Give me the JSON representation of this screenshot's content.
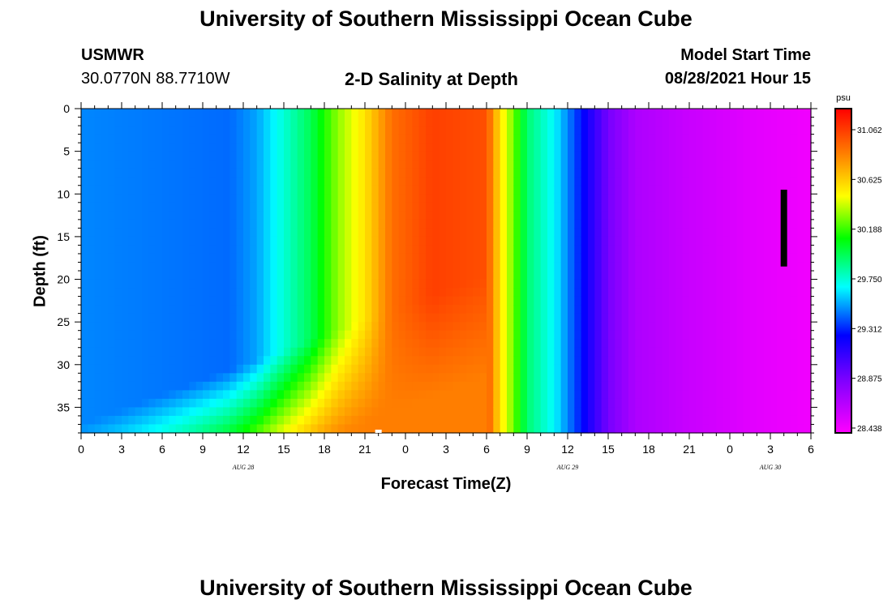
{
  "page": {
    "top_title": "University of Southern Mississippi Ocean Cube",
    "bottom_title": "University of Southern Mississippi Ocean Cube",
    "station_name": "USMWR",
    "station_coords": "30.0770N  88.7710W",
    "plot_title": "2-D Salinity at Depth",
    "model_start_label": "Model Start Time",
    "model_start_value": "08/28/2021 Hour 15"
  },
  "chart_data": {
    "type": "heatmap",
    "title": "2-D Salinity at Depth",
    "xlabel": "Forecast Time(Z)",
    "ylabel": "Depth (ft)",
    "x_ticks": [
      "0",
      "3",
      "6",
      "9",
      "12",
      "15",
      "18",
      "21",
      "0",
      "3",
      "6",
      "9",
      "12",
      "15",
      "18",
      "21",
      "0",
      "3",
      "6"
    ],
    "date_labels": [
      {
        "text": "AUG 28",
        "tick_index": 4
      },
      {
        "text": "AUG 29",
        "tick_index": 12
      },
      {
        "text": "AUG 30",
        "tick_index": 17
      }
    ],
    "y_ticks": [
      0,
      5,
      10,
      15,
      20,
      25,
      30,
      35
    ],
    "ylim": [
      0,
      38
    ],
    "xlim_hours": [
      0,
      54
    ],
    "colorbar": {
      "unit": "psu",
      "ticks": [
        "31.062",
        "30.625",
        "30.188",
        "29.750",
        "29.312",
        "28.875",
        "28.438"
      ],
      "min": 28.3,
      "max": 31.2
    },
    "surface_salinity_profile": [
      {
        "hour": 0,
        "psu": 29.4
      },
      {
        "hour": 11,
        "psu": 29.35
      },
      {
        "hour": 13,
        "psu": 29.45
      },
      {
        "hour": 17,
        "psu": 29.9
      },
      {
        "hour": 19,
        "psu": 30.25
      },
      {
        "hour": 21,
        "psu": 30.5
      },
      {
        "hour": 23,
        "psu": 30.85
      },
      {
        "hour": 26,
        "psu": 31.0
      },
      {
        "hour": 30,
        "psu": 30.95
      },
      {
        "hour": 31,
        "psu": 30.5
      },
      {
        "hour": 32,
        "psu": 30.2
      },
      {
        "hour": 33,
        "psu": 29.85
      },
      {
        "hour": 35,
        "psu": 29.6
      },
      {
        "hour": 37,
        "psu": 29.2
      },
      {
        "hour": 39,
        "psu": 28.8
      },
      {
        "hour": 41,
        "psu": 28.6
      },
      {
        "hour": 45,
        "psu": 28.5
      },
      {
        "hour": 50,
        "psu": 28.4
      },
      {
        "hour": 54,
        "psu": 28.35
      }
    ],
    "marker_bar": {
      "hour": 52,
      "depth_top": 9.5,
      "depth_bottom": 18.5
    }
  }
}
